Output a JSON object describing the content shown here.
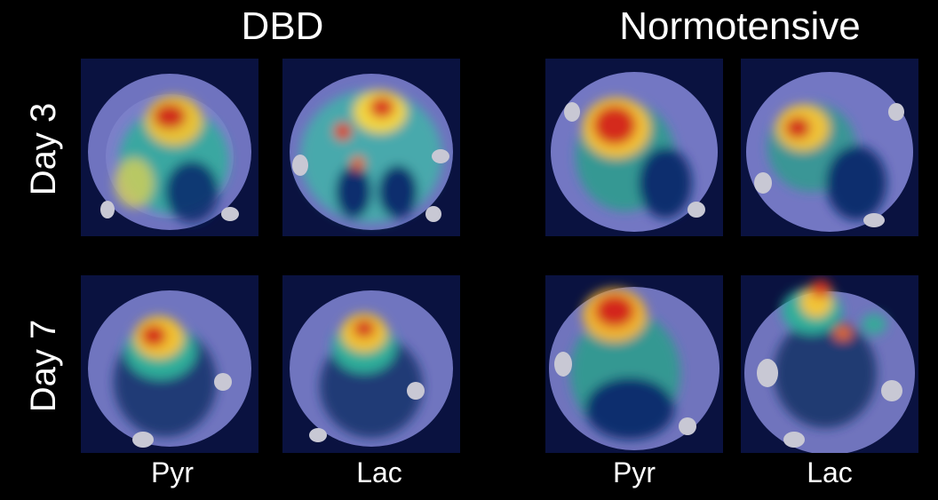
{
  "groups": [
    {
      "title": "DBD"
    },
    {
      "title": "Normotensive"
    }
  ],
  "rows": [
    {
      "label": "Day 3"
    },
    {
      "label": "Day 7"
    }
  ],
  "columns": [
    {
      "label": "Pyr"
    },
    {
      "label": "Lac"
    },
    {
      "label": "Pyr"
    },
    {
      "label": "Lac"
    }
  ],
  "panels": [
    {
      "group": "DBD",
      "row": "Day 3",
      "metabolite": "Pyr"
    },
    {
      "group": "DBD",
      "row": "Day 3",
      "metabolite": "Lac"
    },
    {
      "group": "Normotensive",
      "row": "Day 3",
      "metabolite": "Pyr"
    },
    {
      "group": "Normotensive",
      "row": "Day 3",
      "metabolite": "Lac"
    },
    {
      "group": "DBD",
      "row": "Day 7",
      "metabolite": "Pyr"
    },
    {
      "group": "DBD",
      "row": "Day 7",
      "metabolite": "Lac"
    },
    {
      "group": "Normotensive",
      "row": "Day 7",
      "metabolite": "Pyr"
    },
    {
      "group": "Normotensive",
      "row": "Day 7",
      "metabolite": "Lac"
    }
  ],
  "colors": {
    "background": "#000000",
    "text": "#ffffff"
  }
}
